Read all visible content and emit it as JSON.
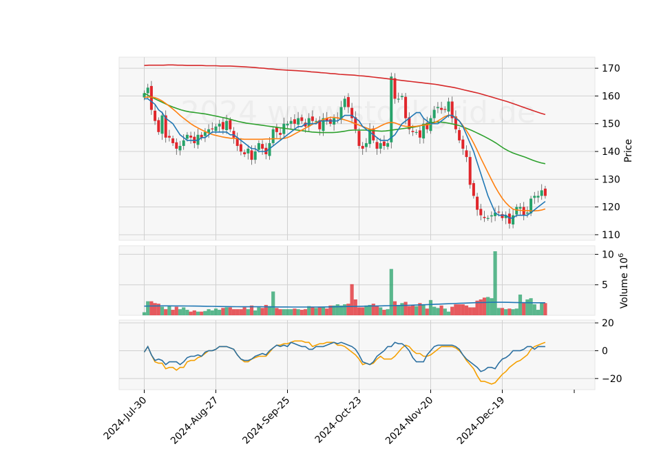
{
  "watermark": "2024 www.stockgrid.de",
  "chart_data": [
    {
      "type": "candlestick",
      "ylabel": "Price",
      "ylim": [
        108,
        174
      ],
      "yticks": [
        110,
        120,
        130,
        140,
        150,
        160,
        170
      ],
      "xtick_labels": [
        "2024-Jul-30",
        "2024-Aug-27",
        "2024-Sep-25",
        "2024-Oct-23",
        "2024-Nov-20",
        "2024-Dec-19"
      ],
      "xtick_index": [
        0,
        20,
        40,
        60,
        80,
        100
      ],
      "close": [
        161,
        163,
        155,
        151,
        147,
        153,
        145,
        145,
        143,
        141,
        142,
        144,
        146,
        145,
        143,
        146,
        145,
        147,
        148,
        148,
        149,
        150,
        148,
        151,
        148,
        145,
        142,
        140,
        139,
        141,
        137,
        140,
        143,
        141,
        139,
        143,
        148,
        147,
        146,
        150,
        150,
        151,
        150,
        152,
        151,
        149,
        152,
        151,
        151,
        148,
        152,
        151,
        150,
        152,
        152,
        156,
        159,
        156,
        152,
        148,
        142,
        141,
        143,
        148,
        144,
        141,
        143,
        142,
        143,
        167,
        159,
        159,
        160,
        152,
        148,
        147,
        147,
        145,
        150,
        148,
        152,
        155,
        156,
        155,
        155,
        158,
        152,
        148,
        144,
        141,
        138,
        128,
        124,
        119,
        117,
        116,
        116,
        117,
        118,
        118,
        116,
        117,
        114,
        117,
        120,
        120,
        117,
        118,
        123,
        124,
        124,
        126,
        124
      ],
      "ma_windows": [
        10,
        20,
        50,
        200
      ],
      "ma_colors": [
        "#1f77b4",
        "#ff7f0e",
        "#2ca02c",
        "#d62728"
      ],
      "ma_10": [
        159,
        159,
        158,
        157,
        155,
        154,
        152,
        151,
        150,
        148,
        146,
        145,
        144,
        144,
        144,
        144,
        145,
        145,
        146,
        147,
        147,
        147,
        147,
        147,
        146,
        146,
        145,
        144,
        143,
        142,
        141,
        141,
        140,
        140,
        140,
        141,
        142,
        143,
        144,
        145,
        146,
        147,
        148,
        149,
        149,
        150,
        150,
        150,
        150,
        151,
        151,
        151,
        151,
        151,
        151,
        152,
        153,
        153,
        153,
        152,
        151,
        149,
        148,
        147,
        146,
        145,
        144,
        144,
        144,
        145,
        146,
        148,
        150,
        151,
        152,
        153,
        154,
        154,
        152,
        151,
        150,
        150,
        150,
        151,
        152,
        153,
        153,
        152,
        151,
        149,
        146,
        143,
        140,
        136,
        132,
        128,
        124,
        121,
        118,
        117,
        117,
        117,
        116,
        116,
        117,
        117,
        117,
        117,
        118,
        119,
        120,
        121,
        122
      ],
      "ma_20": [
        159.5,
        159.6,
        159.6,
        159.4,
        158.9,
        158.2,
        157.3,
        156.3,
        155.3,
        154.2,
        153.0,
        152.0,
        151.0,
        150.0,
        149.2,
        148.5,
        147.8,
        147.2,
        146.6,
        146.1,
        145.8,
        145.5,
        145.2,
        145.0,
        144.8,
        144.7,
        144.6,
        144.5,
        144.4,
        144.4,
        144.4,
        144.4,
        144.4,
        144.4,
        144.5,
        144.5,
        144.6,
        144.6,
        144.6,
        144.7,
        145.0,
        145.6,
        146.3,
        147.0,
        147.7,
        148.4,
        149.1,
        149.8,
        150.4,
        151.0,
        151.5,
        152.0,
        152.3,
        152.3,
        152.1,
        151.8,
        151.4,
        151.0,
        150.5,
        150.0,
        149.5,
        149.0,
        148.5,
        148.0,
        148.0,
        148.5,
        149.2,
        149.8,
        150.3,
        150.5,
        150.3,
        149.8,
        149.3,
        149.1,
        149.0,
        149.0,
        149.1,
        149.3,
        149.5,
        149.6,
        149.8,
        150.3,
        151.0,
        151.8,
        152.6,
        153.1,
        153.0,
        152.3,
        151.0,
        149.3,
        147.5,
        145.4,
        143.0,
        140.4,
        137.6,
        135.0,
        132.4,
        129.8,
        127.3,
        125.1,
        123.1,
        121.5,
        120.2,
        119.2,
        118.9,
        118.8,
        118.7,
        118.7,
        118.6,
        118.6,
        118.7,
        118.9,
        119.3
      ],
      "ma_50": [
        161.0,
        160.2,
        159.4,
        158.7,
        158.0,
        157.3,
        156.6,
        156.0,
        155.5,
        155.0,
        154.6,
        154.3,
        154.1,
        153.9,
        153.7,
        153.5,
        153.2,
        152.9,
        152.6,
        152.3,
        152.0,
        151.6,
        151.2,
        150.8,
        150.5,
        150.2,
        150.0,
        149.8,
        149.6,
        149.4,
        149.2,
        149.0,
        148.8,
        148.6,
        148.4,
        148.2,
        148.0,
        147.8,
        147.6,
        147.4,
        147.2,
        147.0,
        146.9,
        146.8,
        146.8,
        146.8,
        146.8,
        146.9,
        147.1,
        147.3,
        147.6,
        147.7,
        147.7,
        147.7,
        147.7,
        147.6,
        147.5,
        147.4,
        147.3,
        147.4,
        147.6,
        147.8,
        148.0,
        148.2,
        148.4,
        148.6,
        148.8,
        149.1,
        149.5,
        149.9,
        150.3,
        150.6,
        150.6,
        150.5,
        150.3,
        150.0,
        149.7,
        149.3,
        148.8,
        148.2,
        147.6,
        146.9,
        146.2,
        145.5,
        144.7,
        143.9,
        143.0,
        142.0,
        141.0,
        140.2,
        139.5,
        139.0,
        138.5,
        138.0,
        137.4,
        136.8,
        136.3,
        135.9,
        135.6
      ],
      "ma_200": [
        171.0,
        171.1,
        171.1,
        171.1,
        171.1,
        171.2,
        171.2,
        171.1,
        171.1,
        171.0,
        171.0,
        171.0,
        171.0,
        170.9,
        170.9,
        170.9,
        170.8,
        170.8,
        170.8,
        170.7,
        170.6,
        170.5,
        170.4,
        170.3,
        170.1,
        170.0,
        169.8,
        169.7,
        169.5,
        169.4,
        169.3,
        169.2,
        169.1,
        169.0,
        168.9,
        168.7,
        168.6,
        168.4,
        168.3,
        168.1,
        168.0,
        167.8,
        167.7,
        167.6,
        167.5,
        167.3,
        167.2,
        167.0,
        166.8,
        166.6,
        166.4,
        166.2,
        166.0,
        165.8,
        165.6,
        165.4,
        165.2,
        165.0,
        164.8,
        164.6,
        164.4,
        164.2,
        163.9,
        163.6,
        163.3,
        163.0,
        162.6,
        162.2,
        161.8,
        161.4,
        161.0,
        160.5,
        160.0,
        159.5,
        159.0,
        158.5,
        158.0,
        157.4,
        156.8,
        156.2,
        155.6,
        155.0,
        154.4,
        153.8,
        153.3
      ]
    },
    {
      "type": "bar",
      "ylabel": "Volume  10",
      "ylabel_exponent": "6",
      "ylim": [
        0,
        10.5
      ],
      "yticks": [
        5,
        10
      ],
      "colors": {
        "up": "#26a269",
        "down": "#e0262b"
      },
      "volume": [
        0.5,
        2.3,
        2.3,
        2.0,
        1.9,
        1.4,
        1.0,
        1.5,
        0.9,
        1.4,
        1.0,
        1.3,
        0.9,
        0.6,
        0.8,
        0.6,
        0.6,
        0.7,
        1.0,
        0.8,
        1.1,
        0.9,
        1.2,
        1.3,
        1.3,
        1.0,
        1.0,
        1.0,
        1.3,
        1.0,
        1.6,
        0.8,
        1.3,
        1.2,
        1.7,
        1.5,
        3.9,
        1.2,
        1.0,
        1.0,
        1.0,
        1.0,
        1.1,
        1.0,
        0.9,
        1.0,
        1.5,
        1.4,
        1.2,
        1.4,
        1.4,
        1.1,
        1.6,
        1.6,
        1.8,
        1.6,
        1.8,
        1.9,
        5.1,
        2.6,
        1.3,
        1.3,
        1.6,
        1.7,
        1.9,
        1.5,
        1.3,
        0.9,
        1.0,
        7.6,
        2.3,
        1.6,
        2.0,
        2.2,
        1.5,
        1.7,
        1.5,
        2.0,
        1.8,
        1.1,
        2.5,
        1.4,
        1.2,
        1.6,
        1.1,
        0.6,
        1.4,
        1.8,
        1.8,
        1.8,
        1.6,
        1.3,
        1.3,
        2.4,
        2.6,
        2.9,
        3.0,
        2.8,
        10.5,
        1.2,
        1.2,
        1.0,
        1.1,
        1.0,
        1.1,
        3.4,
        2.0,
        2.6,
        2.8,
        1.8,
        0.9,
        2.1,
        2.0
      ],
      "volume_ma": [
        1.5,
        1.52,
        1.54,
        1.55,
        1.55,
        1.54,
        1.53,
        1.52,
        1.51,
        1.5,
        1.48,
        1.47,
        1.45,
        1.43,
        1.42,
        1.41,
        1.4,
        1.4,
        1.4,
        1.4,
        1.39,
        1.38,
        1.37,
        1.37,
        1.36,
        1.35,
        1.35,
        1.35,
        1.36,
        1.37,
        1.38,
        1.4,
        1.42,
        1.44,
        1.46,
        1.48,
        1.5,
        1.52,
        1.54,
        1.56,
        1.58,
        1.6,
        1.62,
        1.65,
        1.68,
        1.72,
        1.76,
        1.8,
        1.84,
        1.88,
        1.92,
        1.96,
        2.0,
        2.04,
        2.08,
        2.1,
        2.12,
        2.13,
        2.13,
        2.12,
        2.1,
        2.08,
        2.07,
        2.06,
        2.05,
        2.05
      ]
    },
    {
      "type": "line",
      "ylim": [
        -28,
        22
      ],
      "yticks": [
        -20,
        0,
        20
      ],
      "series_colors": [
        "#2a6fa0",
        "#f5a000"
      ],
      "osc_1": [
        -1,
        3,
        -3,
        -7,
        -6,
        -7,
        -10,
        -8,
        -8,
        -8,
        -10,
        -8,
        -5,
        -4,
        -4,
        -3,
        -4,
        -1,
        0,
        0,
        1,
        3,
        3,
        3,
        2,
        1,
        -3,
        -6,
        -7,
        -7,
        -6,
        -4,
        -3,
        -2,
        -3,
        0,
        2,
        4,
        3,
        4,
        3,
        6,
        5,
        4,
        3,
        3,
        1,
        1,
        3,
        3,
        3,
        4,
        5,
        6,
        5,
        6,
        5,
        4,
        3,
        1,
        -3,
        -8,
        -9,
        -10,
        -8,
        -4,
        -2,
        0,
        3,
        3,
        6,
        5,
        5,
        3,
        0,
        -5,
        -8,
        -8,
        -8,
        -3,
        0,
        3,
        4,
        4,
        4,
        4,
        4,
        3,
        1,
        -3,
        -6,
        -8,
        -10,
        -12,
        -15,
        -14,
        -12,
        -12,
        -13,
        -9,
        -6,
        -5,
        -3,
        0,
        0,
        0,
        1,
        3,
        3,
        1,
        3,
        3,
        3
      ],
      "osc_2": [
        -1,
        3,
        -3,
        -8,
        -9,
        -9,
        -13,
        -12,
        -12,
        -14,
        -12,
        -12,
        -8,
        -7,
        -7,
        -5,
        -4,
        -2,
        0,
        0,
        1,
        3,
        3,
        3,
        2,
        1,
        -3,
        -6,
        -8,
        -8,
        -6,
        -5,
        -4,
        -4,
        -4,
        -1,
        2,
        4,
        4,
        5,
        5,
        6,
        7,
        7,
        7,
        6,
        6,
        3,
        4,
        5,
        5,
        6,
        6,
        6,
        4,
        4,
        3,
        1,
        -1,
        -3,
        -6,
        -10,
        -9,
        -10,
        -9,
        -6,
        -4,
        -6,
        -6,
        -6,
        -4,
        -1,
        2,
        4,
        3,
        0,
        -2,
        -2,
        -4,
        -4,
        -3,
        -1,
        1,
        3,
        3,
        3,
        3,
        2,
        0,
        -3,
        -7,
        -10,
        -13,
        -18,
        -22,
        -22,
        -23,
        -24,
        -23,
        -20,
        -17,
        -15,
        -12,
        -10,
        -8,
        -7,
        -5,
        -3,
        1,
        3,
        4,
        5,
        6
      ]
    }
  ]
}
